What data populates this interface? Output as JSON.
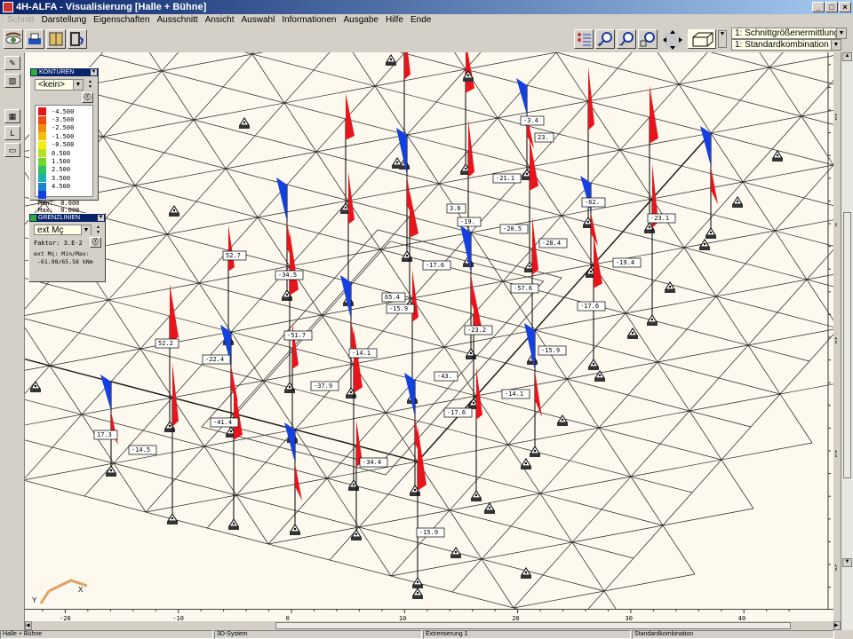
{
  "window": {
    "title": "4H-ALFA - Visualisierung [Halle + Bühne]",
    "controls": [
      "_",
      "□",
      "×"
    ]
  },
  "menu": [
    {
      "label": "Schnitt",
      "disabled": true
    },
    {
      "label": "Darstellung"
    },
    {
      "label": "Eigenschaften"
    },
    {
      "label": "Ausschnitt"
    },
    {
      "label": "Ansicht"
    },
    {
      "label": "Auswahl"
    },
    {
      "label": "Informationen"
    },
    {
      "label": "Ausgabe"
    },
    {
      "label": "Hilfe"
    },
    {
      "label": "Ende"
    }
  ],
  "toolbar": {
    "left_icons": [
      "eye-icon",
      "printer-icon",
      "book-icon",
      "exit-door-icon"
    ],
    "right_icons": [
      "list-settings-icon",
      "zoom-in-icon",
      "zoom-out-icon",
      "zoom-window-icon",
      "pan-arrows-icon",
      "box-view-icon"
    ],
    "analysis_select": "1: Schnittgrößenermittlung",
    "combination_select": "1: Standardkombination"
  },
  "konturen": {
    "title": "KONTUREN",
    "select": "<kein>",
    "legend": [
      {
        "value": "-4.500",
        "color": "#e8141c"
      },
      {
        "value": "-3.500",
        "color": "#f04a10"
      },
      {
        "value": "-2.500",
        "color": "#f08c10"
      },
      {
        "value": "-1.500",
        "color": "#f4c010"
      },
      {
        "value": "-0.500",
        "color": "#f0f010"
      },
      {
        "value": "0.500",
        "color": "#b8e020"
      },
      {
        "value": "1.500",
        "color": "#70d830"
      },
      {
        "value": "2.500",
        "color": "#30c060"
      },
      {
        "value": "3.500",
        "color": "#20b0b0"
      },
      {
        "value": "4.500",
        "color": "#2080d0"
      },
      {
        "value": "",
        "color": "#1040e0"
      }
    ],
    "min_label": "Min:",
    "min_value": "0.000",
    "max_label": "Max:",
    "max_value": "0.000"
  },
  "grenzlinien": {
    "title": "GRENZLINIEN",
    "select": "ext Mç",
    "faktor": "Faktor: 3.E-2",
    "info_line1": "ext Mç: Min/Max:",
    "info_line2": "-61.98/65.58 kNm"
  },
  "diagram_labels": [
    "-3.4",
    "23.",
    "-21.1",
    "-62.",
    "3.6",
    "-19.",
    "-20.5",
    "-28.4",
    "-23.1",
    "-19.4",
    "-17.6",
    "-57.6",
    "52.7",
    "-34.5",
    "65.4",
    "-15.9",
    "-17.6",
    "-51.7",
    "-23.2",
    "52.2",
    "-22.4",
    "-14.1",
    "-43.",
    "-15.9",
    "-37.9",
    "-14.1",
    "-17.6",
    "-41.4",
    "17.3",
    "-14.5",
    "-34.4",
    "-15.9"
  ],
  "colors": {
    "negative": "#e8141c",
    "positive": "#1440e0",
    "canvas": "#fdf9ee",
    "axis_triad": "#e0a060"
  },
  "axis_triad": {
    "x": "X",
    "y": "Y"
  },
  "hruler_ticks": [
    "-20",
    "-10",
    "0",
    "10",
    "20",
    "30",
    "40"
  ],
  "vruler_ticks": [
    "-10",
    "0",
    "10",
    "20",
    "30"
  ],
  "statusbar": [
    "Halle + Bühne",
    "3D-System",
    "Extremierung 1",
    "Standardkombination"
  ]
}
